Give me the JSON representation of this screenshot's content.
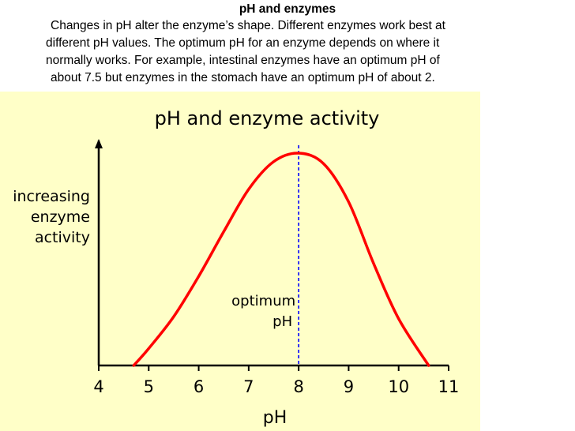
{
  "header": {
    "title": "pH and enzymes",
    "lines": [
      "Changes in pH alter the enzyme’s shape. Different enzymes work best at",
      "different pH values. The optimum pH for an enzyme depends on where it",
      "normally works. For example, intestinal enzymes have an optimum pH of",
      "about 7.5 but enzymes in the stomach have an optimum pH of about 2."
    ]
  },
  "colors": {
    "panel_background": "#ffffc8",
    "curve": "#ff0000",
    "optimum_line": "#0000ff",
    "axes": "#000000"
  },
  "chart_data": {
    "type": "line",
    "title": "pH and enzyme activity",
    "xlabel": "pH",
    "ylabel_lines": [
      "increasing",
      "enzyme",
      "activity"
    ],
    "xlim": [
      4,
      11
    ],
    "ylim": [
      0,
      1
    ],
    "x_ticks": [
      "4",
      "5",
      "6",
      "7",
      "8",
      "9",
      "10",
      "11"
    ],
    "y_ticks": [],
    "grid": false,
    "series": [
      {
        "x": [
          4.7,
          5.0,
          5.5,
          6.0,
          6.5,
          7.0,
          7.5,
          8.0,
          8.5,
          9.0,
          9.5,
          10.0,
          10.6
        ],
        "y": [
          0.0,
          0.08,
          0.23,
          0.42,
          0.63,
          0.83,
          0.96,
          1.0,
          0.95,
          0.77,
          0.48,
          0.22,
          0.0
        ]
      }
    ],
    "annotations": [
      {
        "type": "vline",
        "x": 8,
        "style": "dashed",
        "label_lines": [
          "optimum",
          "pH"
        ]
      }
    ]
  }
}
